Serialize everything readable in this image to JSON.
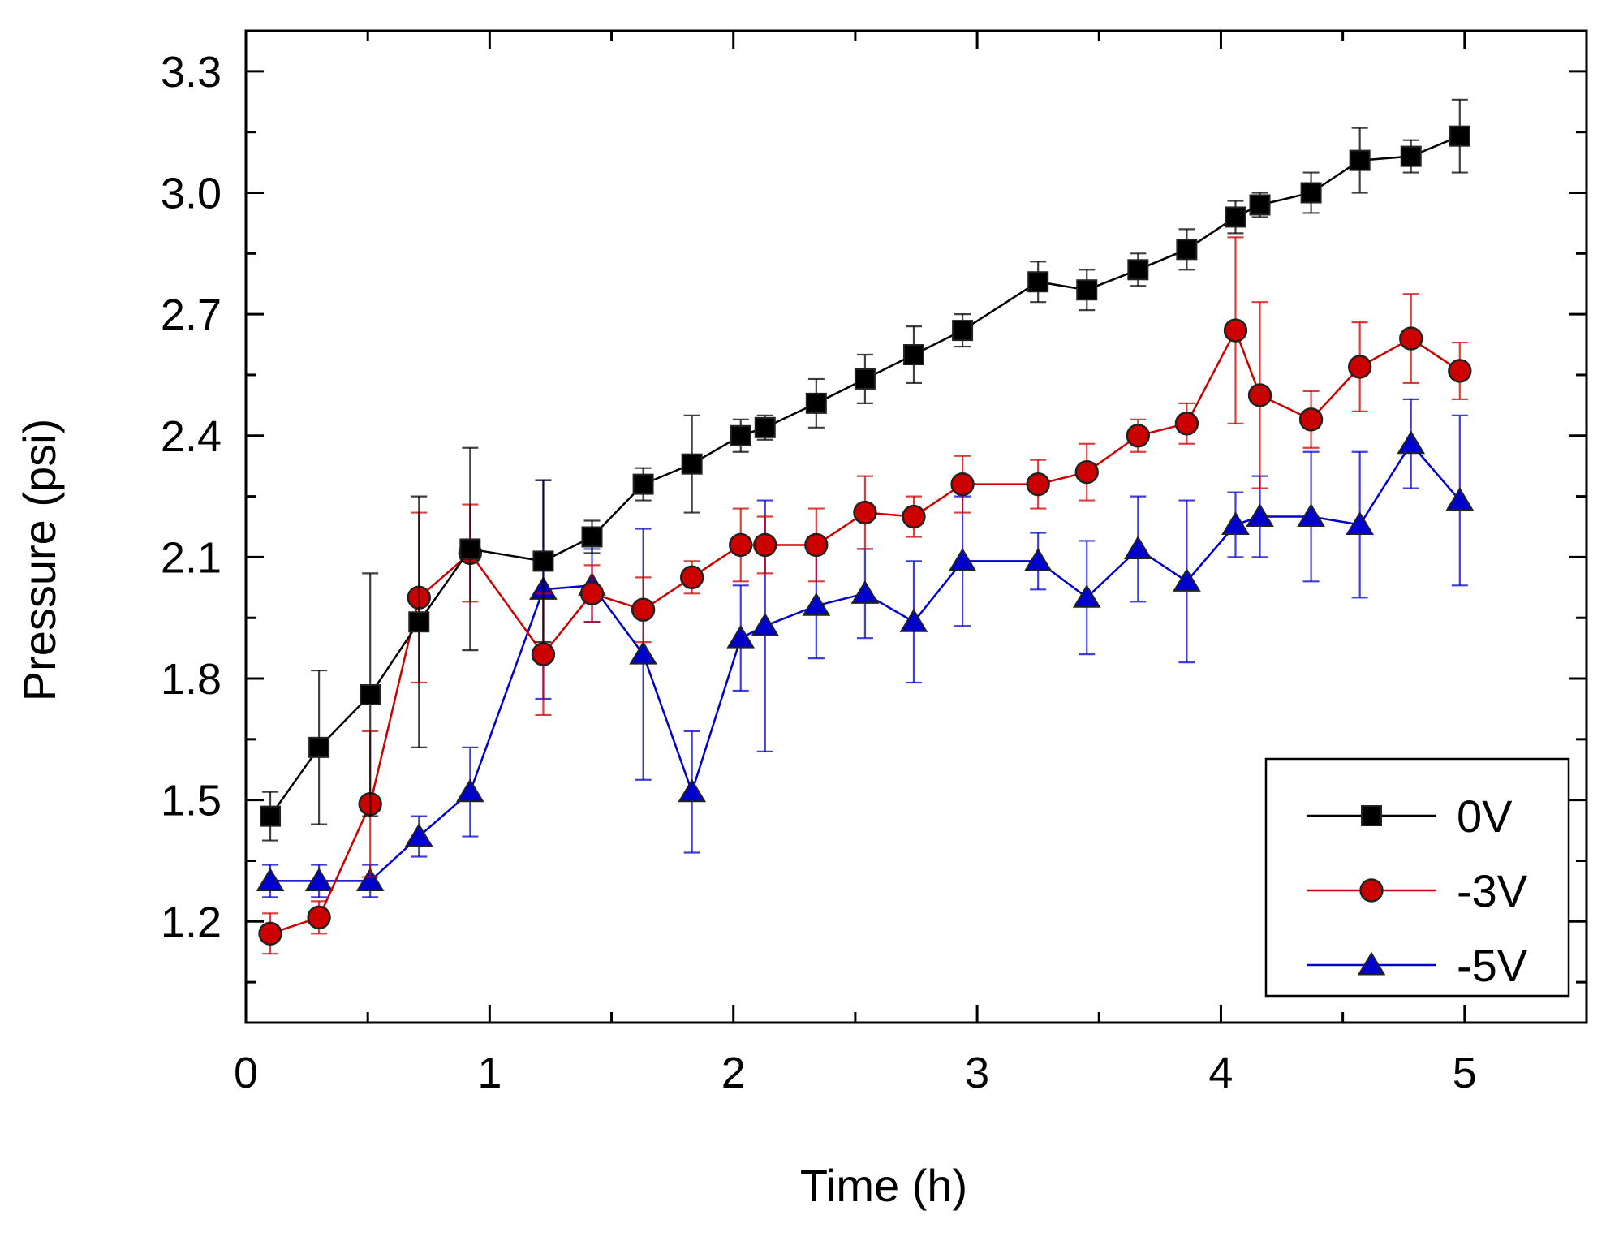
{
  "chart_data": {
    "type": "line",
    "xlabel": "Time (h)",
    "ylabel": "Pressure (psi)",
    "xlim": [
      0,
      5.5
    ],
    "ylim": [
      0.95,
      3.4
    ],
    "xticks": [
      0,
      1,
      2,
      3,
      4,
      5
    ],
    "xtick_labels": [
      "0",
      "1",
      "2",
      "3",
      "4",
      "5"
    ],
    "yticks": [
      1.2,
      1.5,
      1.8,
      2.1,
      2.4,
      2.7,
      3.0,
      3.3
    ],
    "ytick_labels": [
      "1.2",
      "1.5",
      "1.8",
      "2.1",
      "2.4",
      "2.7",
      "3.0",
      "3.3"
    ],
    "grid": false,
    "legend_position": "bottom-right",
    "series": [
      {
        "name": "0V",
        "color": "#000000",
        "marker": "square",
        "x": [
          0.1,
          0.3,
          0.51,
          0.71,
          0.92,
          1.22,
          1.42,
          1.63,
          1.83,
          2.03,
          2.13,
          2.34,
          2.54,
          2.74,
          2.94,
          3.25,
          3.45,
          3.66,
          3.86,
          4.06,
          4.16,
          4.37,
          4.57,
          4.78,
          4.98
        ],
        "y": [
          1.46,
          1.63,
          1.76,
          1.94,
          2.12,
          2.09,
          2.15,
          2.28,
          2.33,
          2.4,
          2.42,
          2.48,
          2.54,
          2.6,
          2.66,
          2.78,
          2.76,
          2.81,
          2.86,
          2.94,
          2.97,
          3.0,
          3.08,
          3.09,
          3.14
        ],
        "yerr": [
          0.06,
          0.19,
          0.3,
          0.31,
          0.25,
          0.2,
          0.04,
          0.04,
          0.12,
          0.04,
          0.03,
          0.06,
          0.06,
          0.07,
          0.04,
          0.05,
          0.05,
          0.04,
          0.05,
          0.04,
          0.03,
          0.05,
          0.08,
          0.04,
          0.09
        ]
      },
      {
        "name": "-3V",
        "color": "#cc0000",
        "marker": "circle",
        "x": [
          0.1,
          0.3,
          0.51,
          0.71,
          0.92,
          1.22,
          1.42,
          1.63,
          1.83,
          2.03,
          2.13,
          2.34,
          2.54,
          2.74,
          2.94,
          3.25,
          3.45,
          3.66,
          3.86,
          4.06,
          4.16,
          4.37,
          4.57,
          4.78,
          4.98
        ],
        "y": [
          1.17,
          1.21,
          1.49,
          2.0,
          2.11,
          1.86,
          2.01,
          1.97,
          2.05,
          2.13,
          2.13,
          2.13,
          2.21,
          2.2,
          2.28,
          2.28,
          2.31,
          2.4,
          2.43,
          2.66,
          2.5,
          2.44,
          2.57,
          2.64,
          2.56
        ],
        "yerr": [
          0.05,
          0.04,
          0.18,
          0.21,
          0.12,
          0.15,
          0.07,
          0.08,
          0.04,
          0.09,
          0.07,
          0.09,
          0.09,
          0.05,
          0.07,
          0.06,
          0.07,
          0.04,
          0.05,
          0.23,
          0.23,
          0.07,
          0.11,
          0.11,
          0.07
        ]
      },
      {
        "name": "-5V",
        "color": "#0000cc",
        "marker": "triangle",
        "x": [
          0.1,
          0.3,
          0.51,
          0.71,
          0.92,
          1.22,
          1.42,
          1.63,
          1.83,
          2.03,
          2.13,
          2.34,
          2.54,
          2.74,
          2.94,
          3.25,
          3.45,
          3.66,
          3.86,
          4.06,
          4.16,
          4.37,
          4.57,
          4.78,
          4.98
        ],
        "y": [
          1.3,
          1.3,
          1.3,
          1.41,
          1.52,
          2.02,
          2.03,
          1.86,
          1.52,
          1.9,
          1.93,
          1.98,
          2.01,
          1.94,
          2.09,
          2.09,
          2.0,
          2.12,
          2.04,
          2.18,
          2.2,
          2.2,
          2.18,
          2.38,
          2.24
        ],
        "yerr": [
          0.04,
          0.04,
          0.04,
          0.05,
          0.11,
          0.27,
          0.09,
          0.31,
          0.15,
          0.13,
          0.31,
          0.13,
          0.11,
          0.15,
          0.16,
          0.07,
          0.14,
          0.13,
          0.2,
          0.08,
          0.1,
          0.16,
          0.18,
          0.11,
          0.21
        ]
      }
    ]
  }
}
